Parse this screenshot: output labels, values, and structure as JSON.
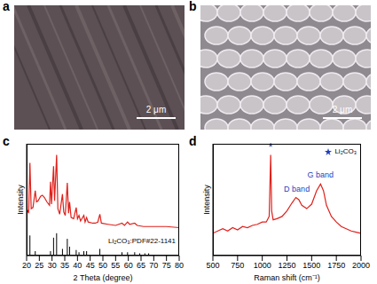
{
  "panels": [
    {
      "label": "a",
      "scale_bar": "2 μm"
    },
    {
      "label": "b",
      "scale_bar": "2 μm"
    }
  ],
  "chart_data": [
    {
      "panel_label": "c",
      "type": "line",
      "x_label": "2 Theta (degree)",
      "y_label": "Intensity",
      "xlim": [
        20,
        80
      ],
      "xticks": [
        20,
        25,
        30,
        35,
        40,
        45,
        50,
        55,
        60,
        65,
        70,
        75,
        80
      ],
      "ylim": [
        0,
        100
      ],
      "tick_labels": "x",
      "legend": "lower right",
      "series": [
        {
          "color": "#e0201b",
          "x": [
            20.0,
            20.8,
            21.3,
            21.8,
            22.5,
            23.4,
            23.9,
            24.5,
            25.5,
            26.2,
            27.0,
            28.0,
            29.0,
            29.4,
            29.8,
            30.6,
            31.0,
            31.8,
            32.3,
            33.0,
            34.1,
            34.6,
            35.2,
            36.0,
            36.5,
            36.9,
            37.5,
            38.5,
            39.5,
            40.0,
            40.6,
            41.2,
            42.5,
            43.0,
            43.6,
            44.2,
            46.0,
            47.0,
            48.0,
            48.8,
            49.4,
            52.0,
            55.0,
            57.5,
            58.5,
            59.7,
            60.5,
            62.5,
            63.5,
            66.0,
            70.0,
            75.0,
            80.0
          ],
          "values": [
            42,
            38,
            83,
            42,
            43,
            58,
            48,
            49,
            53,
            54,
            52,
            48,
            45,
            66,
            46,
            80,
            49,
            90,
            42,
            37,
            55,
            39,
            36,
            65,
            38,
            48,
            34,
            33,
            43,
            33,
            36,
            31,
            36,
            30,
            34,
            30,
            29,
            29,
            30,
            37,
            29,
            28,
            27,
            29,
            27,
            30,
            28,
            29,
            27,
            26,
            26,
            26,
            25
          ]
        },
        {
          "name": "Li₂CO₃:PDF#22-1141",
          "type": "stem",
          "color": "#000000",
          "x": [
            21.3,
            23.4,
            29.4,
            30.6,
            31.8,
            34.1,
            36.0,
            36.9,
            39.5,
            40.6,
            42.5,
            43.6,
            48.8,
            57.5,
            59.7,
            62.5,
            64.5,
            66.5,
            68.0
          ],
          "values": [
            18,
            4,
            4,
            16,
            20,
            6,
            15,
            8,
            5,
            3,
            4,
            4,
            6,
            3,
            3,
            3,
            2,
            2,
            2
          ]
        }
      ]
    },
    {
      "panel_label": "d",
      "type": "line",
      "x_label": "Raman shift (cm⁻¹)",
      "y_label": "Intensity",
      "xlim": [
        500,
        2000
      ],
      "xticks": [
        500,
        750,
        1000,
        1250,
        1500,
        1750,
        2000
      ],
      "ylim": [
        0,
        100
      ],
      "tick_labels": "x",
      "legend": "upper right",
      "key": {
        "marker": "star",
        "color": "#1f3fbf",
        "text": "Li₂CO₃"
      },
      "annotations": [
        {
          "text": "*",
          "x": 1085,
          "y": 97,
          "color": "#1f3fbf"
        },
        {
          "text": "D band",
          "x": 1350,
          "y": 60,
          "color": "#1f3fbf"
        },
        {
          "text": "G band",
          "x": 1590,
          "y": 72,
          "color": "#1f3fbf"
        }
      ],
      "series": [
        {
          "color": "#e0201b",
          "x": [
            500,
            550,
            600,
            650,
            700,
            750,
            800,
            850,
            900,
            950,
            1000,
            1040,
            1070,
            1085,
            1095,
            1110,
            1150,
            1200,
            1250,
            1300,
            1340,
            1370,
            1400,
            1450,
            1500,
            1550,
            1590,
            1620,
            1650,
            1700,
            1750,
            1800,
            1850,
            1900,
            1950,
            2000
          ],
          "values": [
            20,
            22,
            24,
            22,
            25,
            23,
            26,
            25,
            27,
            28,
            30,
            30,
            35,
            90,
            40,
            32,
            33,
            35,
            40,
            47,
            52,
            50,
            45,
            42,
            46,
            58,
            64,
            58,
            45,
            35,
            30,
            26,
            24,
            22,
            21,
            20
          ]
        }
      ]
    }
  ]
}
